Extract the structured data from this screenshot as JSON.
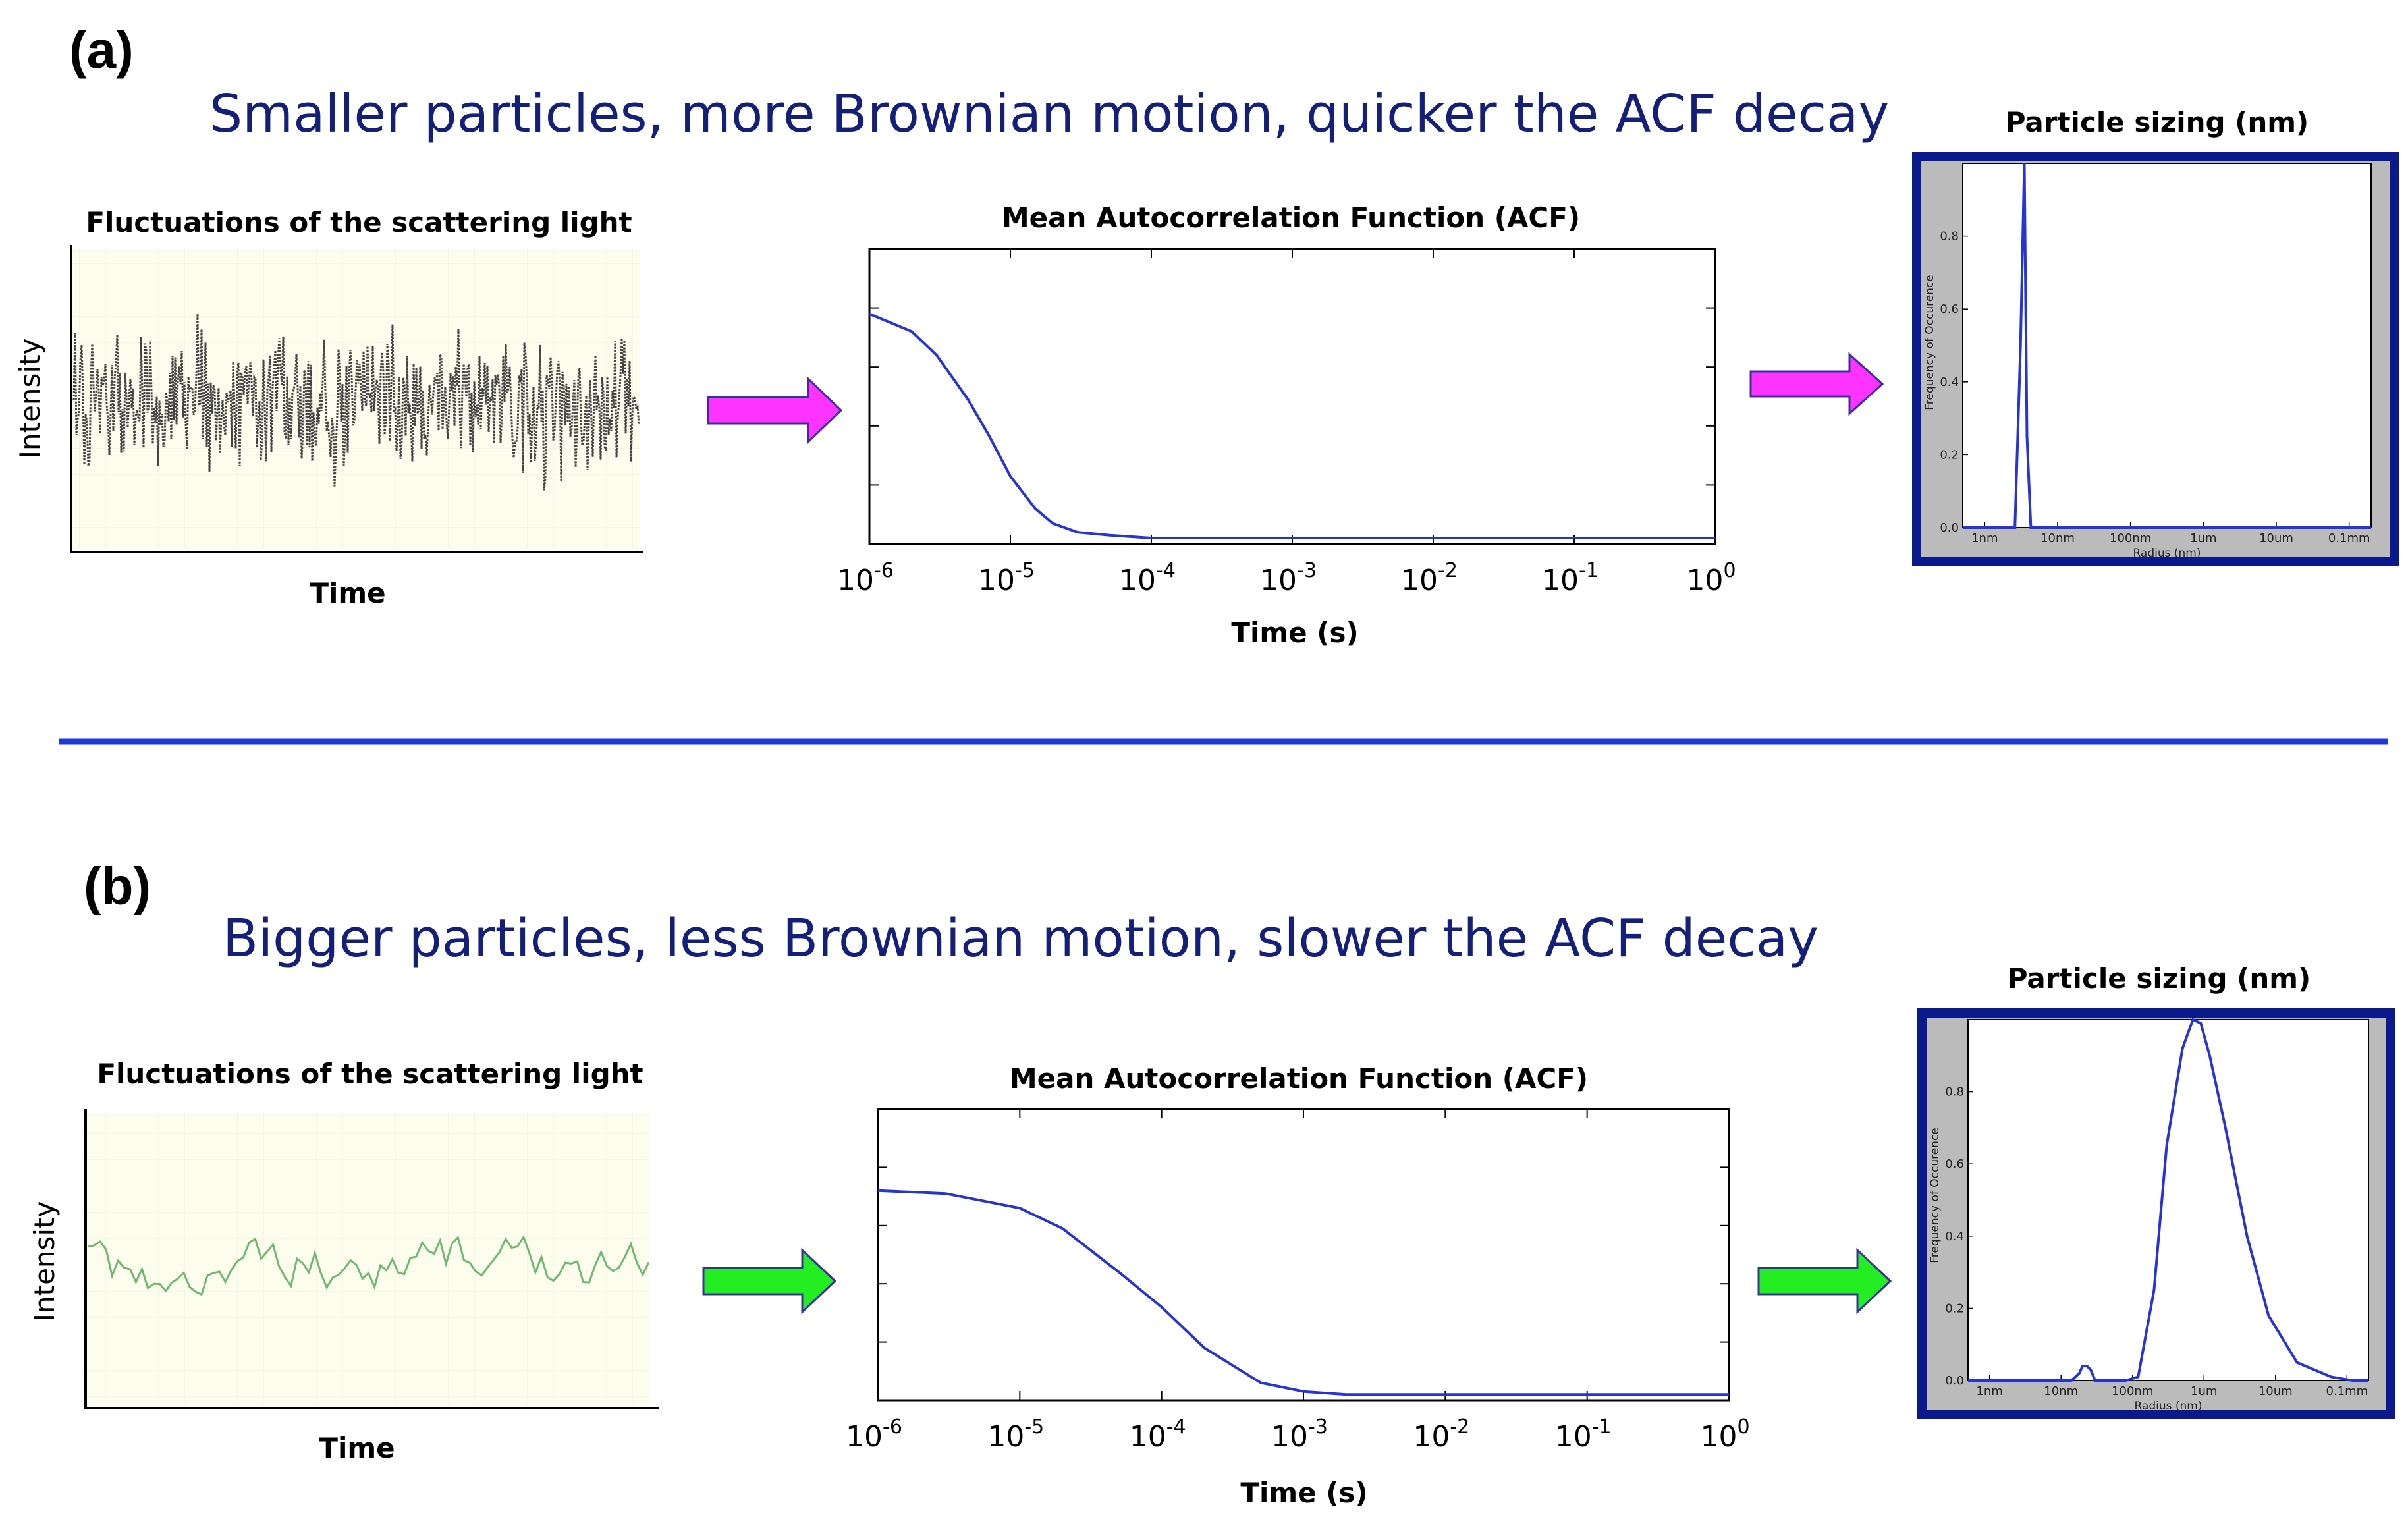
{
  "colors": {
    "headline": "#141f7a",
    "chart_line": "#2633d6",
    "arrow_a": "#ff33ff",
    "arrow_b": "#22ee22",
    "arrow_border": "#3a2fa0",
    "separator": "#1f39d8",
    "frame": "#0a1a8c",
    "trace_bg": "#fdfdee",
    "psd_side": "#bbbbbb",
    "trace_a": "#444444",
    "trace_b": "#6fb86f"
  },
  "panels": [
    {
      "label": "(a)",
      "headline": "Smaller particles, more Brownian motion, quicker the ACF decay",
      "arrow_icon": "right-arrow-magenta",
      "trace": {
        "title": "Fluctuations of the scattering light",
        "xlabel": "Time",
        "ylabel": "Intensity"
      },
      "acf": {
        "title": "Mean Autocorrelation Function (ACF)",
        "xlabel": "Time (s)",
        "tick_base": "10",
        "tick_exponents": [
          "-6",
          "-5",
          "-4",
          "-3",
          "-2",
          "-1",
          "0"
        ]
      },
      "psd": {
        "title": "Particle sizing (nm)",
        "ylabel": "Frequency of Occurence",
        "xlabel": "Radius (nm)",
        "x_ticks": [
          "1nm",
          "10nm",
          "100nm",
          "1um",
          "10um",
          "0.1mm"
        ],
        "y_ticks": [
          "0.0",
          "0.2",
          "0.4",
          "0.6",
          "0.8"
        ]
      }
    },
    {
      "label": "(b)",
      "headline": "Bigger particles, less Brownian motion, slower the ACF decay",
      "arrow_icon": "right-arrow-green",
      "trace": {
        "title": "Fluctuations of the scattering light",
        "xlabel": "Time",
        "ylabel": "Intensity"
      },
      "acf": {
        "title": "Mean Autocorrelation Function (ACF)",
        "xlabel": "Time (s)",
        "tick_base": "10",
        "tick_exponents": [
          "-6",
          "-5",
          "-4",
          "-3",
          "-2",
          "-1",
          "0"
        ]
      },
      "psd": {
        "title": "Particle sizing (nm)",
        "ylabel": "Frequency of Occurence",
        "xlabel": "Radius (nm)",
        "x_ticks": [
          "1nm",
          "10nm",
          "100nm",
          "1um",
          "10um",
          "0.1mm"
        ],
        "y_ticks": [
          "0.0",
          "0.2",
          "0.4",
          "0.6",
          "0.8"
        ]
      }
    }
  ],
  "chart_data": [
    {
      "type": "line",
      "panel": "(a)",
      "title": "Mean Autocorrelation Function (ACF)",
      "xlabel": "Time (s)",
      "ylabel": "",
      "x_scale": "log",
      "xlim": [
        1e-06,
        1
      ],
      "ylim": [
        0,
        1
      ],
      "grid": false,
      "x": [
        1e-06,
        2e-06,
        3e-06,
        5e-06,
        7e-06,
        1e-05,
        1.5e-05,
        2e-05,
        3e-05,
        5e-05,
        0.0001,
        0.001,
        0.01,
        0.1,
        1
      ],
      "values": [
        0.78,
        0.72,
        0.64,
        0.49,
        0.37,
        0.23,
        0.12,
        0.07,
        0.04,
        0.03,
        0.02,
        0.02,
        0.02,
        0.02,
        0.02
      ]
    },
    {
      "type": "line",
      "panel": "(a)",
      "title": "Particle sizing (nm)",
      "xlabel": "Radius (nm)",
      "ylabel": "Frequency of Occurence",
      "x_scale": "log",
      "xlim": [
        0.5,
        200000
      ],
      "ylim": [
        0,
        1
      ],
      "grid": false,
      "x": [
        0.5,
        2.6,
        3.1,
        3.5,
        3.8,
        4.3,
        200000
      ],
      "values": [
        0,
        0,
        0.5,
        1.0,
        0.25,
        0,
        0
      ]
    },
    {
      "type": "line",
      "panel": "(b)",
      "title": "Mean Autocorrelation Function (ACF)",
      "xlabel": "Time (s)",
      "ylabel": "",
      "x_scale": "log",
      "xlim": [
        1e-06,
        1
      ],
      "ylim": [
        0,
        1
      ],
      "grid": false,
      "x": [
        1e-06,
        3e-06,
        1e-05,
        2e-05,
        5e-05,
        0.0001,
        0.0002,
        0.0005,
        0.001,
        0.002,
        0.01,
        0.1,
        1
      ],
      "values": [
        0.72,
        0.71,
        0.66,
        0.59,
        0.44,
        0.32,
        0.18,
        0.06,
        0.03,
        0.02,
        0.02,
        0.02,
        0.02
      ]
    },
    {
      "type": "line",
      "panel": "(b)",
      "title": "Particle sizing (nm)",
      "xlabel": "Radius (nm)",
      "ylabel": "Frequency of Occurence",
      "x_scale": "log",
      "xlim": [
        0.5,
        200000
      ],
      "ylim": [
        0,
        1
      ],
      "grid": false,
      "x": [
        0.5,
        14,
        18,
        20,
        23,
        26,
        30,
        80,
        120,
        200,
        300,
        500,
        700,
        900,
        1200,
        2000,
        4000,
        8000,
        20000,
        60000,
        120000,
        200000
      ],
      "values": [
        0,
        0,
        0.02,
        0.04,
        0.04,
        0.03,
        0,
        0,
        0.01,
        0.25,
        0.65,
        0.92,
        1.0,
        0.99,
        0.9,
        0.7,
        0.4,
        0.18,
        0.05,
        0.01,
        0,
        0
      ]
    }
  ]
}
